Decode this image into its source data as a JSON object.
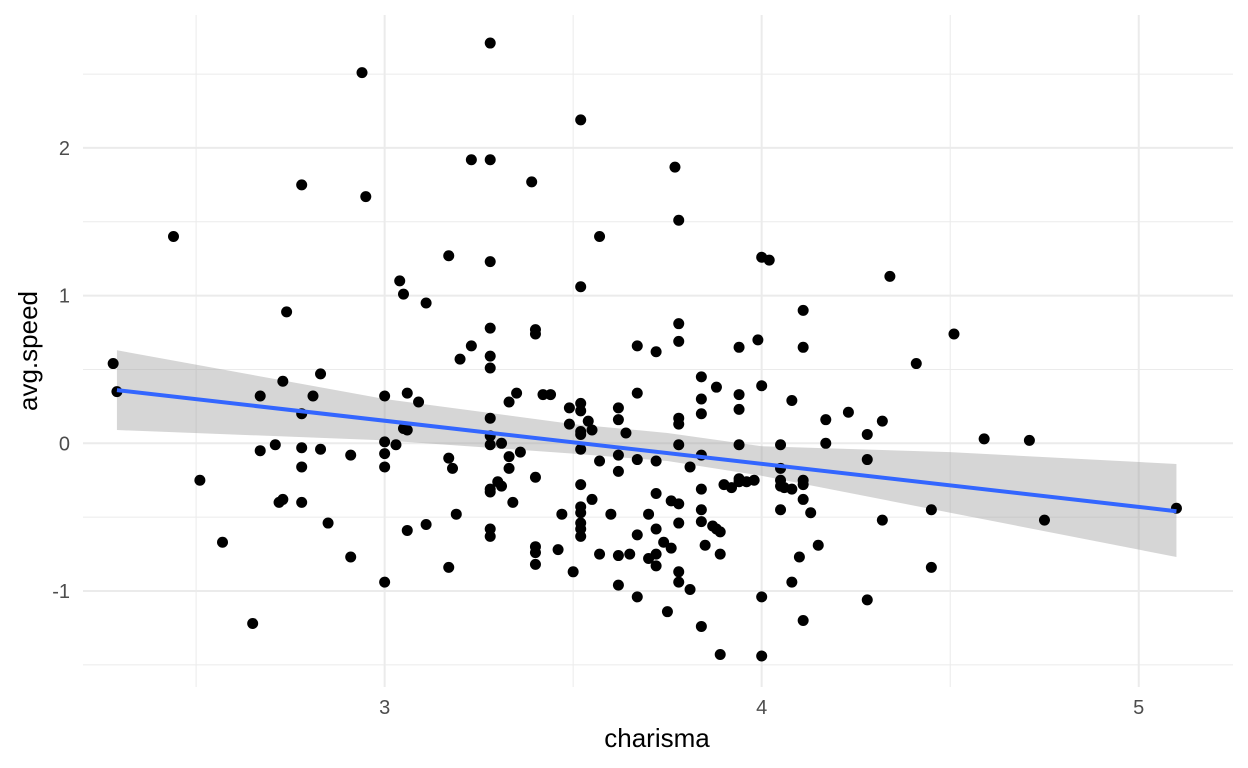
{
  "chart_data": {
    "type": "scatter",
    "xlabel": "charisma",
    "ylabel": "avg.speed",
    "xlim": [
      2.2,
      5.25
    ],
    "ylim": [
      -1.65,
      2.9
    ],
    "x_ticks": [
      3,
      4,
      5
    ],
    "x_tick_labels": [
      "3",
      "4",
      "5"
    ],
    "y_ticks": [
      -1,
      0,
      1,
      2
    ],
    "y_tick_labels": [
      "-1",
      "0",
      "1",
      "2"
    ],
    "grid": true,
    "legend": "none",
    "colors": {
      "points": "#000000",
      "trend": "#3366FF",
      "ribbon": "#999999"
    },
    "points": [
      [
        2.28,
        0.54
      ],
      [
        2.29,
        0.35
      ],
      [
        2.44,
        1.4
      ],
      [
        2.51,
        -0.25
      ],
      [
        2.57,
        -0.67
      ],
      [
        2.65,
        -1.22
      ],
      [
        2.67,
        0.32
      ],
      [
        2.67,
        -0.05
      ],
      [
        2.71,
        -0.01
      ],
      [
        2.72,
        -0.4
      ],
      [
        2.73,
        0.42
      ],
      [
        2.74,
        0.89
      ],
      [
        2.73,
        -0.38
      ],
      [
        2.78,
        1.75
      ],
      [
        2.78,
        0.2
      ],
      [
        2.78,
        -0.16
      ],
      [
        2.78,
        -0.4
      ],
      [
        2.78,
        -0.03
      ],
      [
        2.81,
        0.32
      ],
      [
        2.83,
        0.47
      ],
      [
        2.83,
        -0.04
      ],
      [
        2.85,
        -0.54
      ],
      [
        2.91,
        -0.08
      ],
      [
        2.91,
        -0.77
      ],
      [
        2.94,
        2.51
      ],
      [
        2.95,
        1.67
      ],
      [
        3.0,
        0.32
      ],
      [
        3.0,
        0.01
      ],
      [
        3.0,
        -0.07
      ],
      [
        3.0,
        -0.16
      ],
      [
        3.0,
        -0.94
      ],
      [
        3.03,
        -0.01
      ],
      [
        3.04,
        1.1
      ],
      [
        3.05,
        1.01
      ],
      [
        3.05,
        0.1
      ],
      [
        3.06,
        0.09
      ],
      [
        3.06,
        0.34
      ],
      [
        3.06,
        -0.59
      ],
      [
        3.09,
        0.28
      ],
      [
        3.11,
        0.95
      ],
      [
        3.11,
        -0.55
      ],
      [
        3.17,
        1.27
      ],
      [
        3.17,
        -0.1
      ],
      [
        3.18,
        -0.17
      ],
      [
        3.19,
        -0.48
      ],
      [
        3.17,
        -0.84
      ],
      [
        3.2,
        0.57
      ],
      [
        3.23,
        1.92
      ],
      [
        3.23,
        0.66
      ],
      [
        3.28,
        2.71
      ],
      [
        3.28,
        1.92
      ],
      [
        3.28,
        1.23
      ],
      [
        3.28,
        0.78
      ],
      [
        3.28,
        0.59
      ],
      [
        3.28,
        0.51
      ],
      [
        3.28,
        0.17
      ],
      [
        3.28,
        0.05
      ],
      [
        3.28,
        -0.01
      ],
      [
        3.28,
        -0.31
      ],
      [
        3.28,
        -0.33
      ],
      [
        3.28,
        -0.58
      ],
      [
        3.28,
        -0.63
      ],
      [
        3.3,
        -0.26
      ],
      [
        3.31,
        -0.29
      ],
      [
        3.31,
        0.0
      ],
      [
        3.33,
        0.28
      ],
      [
        3.33,
        -0.09
      ],
      [
        3.33,
        -0.17
      ],
      [
        3.34,
        -0.4
      ],
      [
        3.35,
        0.34
      ],
      [
        3.36,
        -0.06
      ],
      [
        3.39,
        1.77
      ],
      [
        3.4,
        0.77
      ],
      [
        3.4,
        0.74
      ],
      [
        3.4,
        -0.23
      ],
      [
        3.4,
        -0.7
      ],
      [
        3.4,
        -0.74
      ],
      [
        3.4,
        -0.82
      ],
      [
        3.42,
        0.33
      ],
      [
        3.44,
        0.33
      ],
      [
        3.46,
        -0.72
      ],
      [
        3.47,
        -0.48
      ],
      [
        3.49,
        0.24
      ],
      [
        3.49,
        0.13
      ],
      [
        3.5,
        -0.87
      ],
      [
        3.52,
        2.19
      ],
      [
        3.52,
        1.06
      ],
      [
        3.52,
        0.27
      ],
      [
        3.52,
        0.22
      ],
      [
        3.52,
        0.08
      ],
      [
        3.52,
        0.06
      ],
      [
        3.52,
        -0.04
      ],
      [
        3.52,
        -0.28
      ],
      [
        3.52,
        -0.43
      ],
      [
        3.52,
        -0.47
      ],
      [
        3.52,
        -0.54
      ],
      [
        3.52,
        -0.58
      ],
      [
        3.52,
        -0.63
      ],
      [
        3.54,
        0.15
      ],
      [
        3.55,
        0.09
      ],
      [
        3.55,
        -0.38
      ],
      [
        3.57,
        1.4
      ],
      [
        3.57,
        -0.12
      ],
      [
        3.57,
        -0.75
      ],
      [
        3.6,
        -0.48
      ],
      [
        3.62,
        0.24
      ],
      [
        3.62,
        0.16
      ],
      [
        3.62,
        -0.08
      ],
      [
        3.62,
        -0.19
      ],
      [
        3.62,
        -0.76
      ],
      [
        3.62,
        -0.96
      ],
      [
        3.64,
        0.07
      ],
      [
        3.65,
        -0.75
      ],
      [
        3.67,
        0.66
      ],
      [
        3.67,
        0.34
      ],
      [
        3.67,
        -0.11
      ],
      [
        3.67,
        -0.62
      ],
      [
        3.67,
        -1.04
      ],
      [
        3.7,
        -0.48
      ],
      [
        3.7,
        -0.78
      ],
      [
        3.72,
        0.62
      ],
      [
        3.72,
        -0.12
      ],
      [
        3.72,
        -0.34
      ],
      [
        3.72,
        -0.58
      ],
      [
        3.72,
        -0.75
      ],
      [
        3.72,
        -0.83
      ],
      [
        3.74,
        -0.67
      ],
      [
        3.75,
        -1.14
      ],
      [
        3.76,
        -0.39
      ],
      [
        3.76,
        -0.71
      ],
      [
        3.77,
        1.87
      ],
      [
        3.78,
        1.51
      ],
      [
        3.78,
        0.81
      ],
      [
        3.78,
        0.69
      ],
      [
        3.78,
        0.17
      ],
      [
        3.78,
        0.13
      ],
      [
        3.78,
        -0.01
      ],
      [
        3.78,
        -0.41
      ],
      [
        3.78,
        -0.54
      ],
      [
        3.78,
        -0.87
      ],
      [
        3.78,
        -0.94
      ],
      [
        3.81,
        -0.16
      ],
      [
        3.81,
        -0.99
      ],
      [
        3.84,
        0.45
      ],
      [
        3.84,
        0.3
      ],
      [
        3.84,
        0.2
      ],
      [
        3.84,
        -0.08
      ],
      [
        3.84,
        -0.31
      ],
      [
        3.84,
        -0.45
      ],
      [
        3.84,
        -0.53
      ],
      [
        3.84,
        -1.24
      ],
      [
        3.85,
        -0.69
      ],
      [
        3.87,
        -0.56
      ],
      [
        3.88,
        0.38
      ],
      [
        3.88,
        -0.58
      ],
      [
        3.89,
        -0.6
      ],
      [
        3.89,
        -0.75
      ],
      [
        3.89,
        -1.43
      ],
      [
        3.9,
        -0.28
      ],
      [
        3.92,
        -0.3
      ],
      [
        3.94,
        0.65
      ],
      [
        3.94,
        0.33
      ],
      [
        3.94,
        0.23
      ],
      [
        3.94,
        -0.01
      ],
      [
        3.94,
        -0.24
      ],
      [
        3.94,
        -0.26
      ],
      [
        3.96,
        -0.26
      ],
      [
        3.98,
        -0.25
      ],
      [
        3.99,
        0.7
      ],
      [
        4.0,
        1.26
      ],
      [
        4.0,
        0.39
      ],
      [
        4.0,
        -1.04
      ],
      [
        4.0,
        -1.44
      ],
      [
        4.02,
        1.24
      ],
      [
        4.05,
        -0.01
      ],
      [
        4.05,
        -0.17
      ],
      [
        4.05,
        -0.25
      ],
      [
        4.05,
        -0.29
      ],
      [
        4.05,
        -0.45
      ],
      [
        4.06,
        -0.3
      ],
      [
        4.08,
        0.29
      ],
      [
        4.08,
        -0.31
      ],
      [
        4.08,
        -0.94
      ],
      [
        4.1,
        -0.77
      ],
      [
        4.11,
        0.9
      ],
      [
        4.11,
        0.65
      ],
      [
        4.11,
        -0.25
      ],
      [
        4.11,
        -0.28
      ],
      [
        4.11,
        -0.38
      ],
      [
        4.11,
        -1.2
      ],
      [
        4.13,
        -0.47
      ],
      [
        4.15,
        -0.69
      ],
      [
        4.17,
        0.16
      ],
      [
        4.17,
        0.0
      ],
      [
        4.23,
        0.21
      ],
      [
        4.28,
        0.06
      ],
      [
        4.28,
        -0.11
      ],
      [
        4.28,
        -1.06
      ],
      [
        4.32,
        0.15
      ],
      [
        4.32,
        -0.52
      ],
      [
        4.34,
        1.13
      ],
      [
        4.41,
        0.54
      ],
      [
        4.45,
        -0.45
      ],
      [
        4.45,
        -0.84
      ],
      [
        4.51,
        0.74
      ],
      [
        4.59,
        0.03
      ],
      [
        4.71,
        0.02
      ],
      [
        4.75,
        -0.52
      ],
      [
        5.1,
        -0.44
      ]
    ],
    "trend_line": {
      "x": [
        2.29,
        5.1
      ],
      "y": [
        0.36,
        -0.46
      ]
    },
    "confidence_band": {
      "x": [
        2.29,
        3.0,
        3.5,
        3.75,
        4.0,
        4.5,
        5.1
      ],
      "lower": [
        0.09,
        0.02,
        -0.07,
        -0.12,
        -0.22,
        -0.47,
        -0.77
      ],
      "upper": [
        0.63,
        0.3,
        0.13,
        0.07,
        -0.02,
        -0.06,
        -0.14
      ]
    }
  }
}
